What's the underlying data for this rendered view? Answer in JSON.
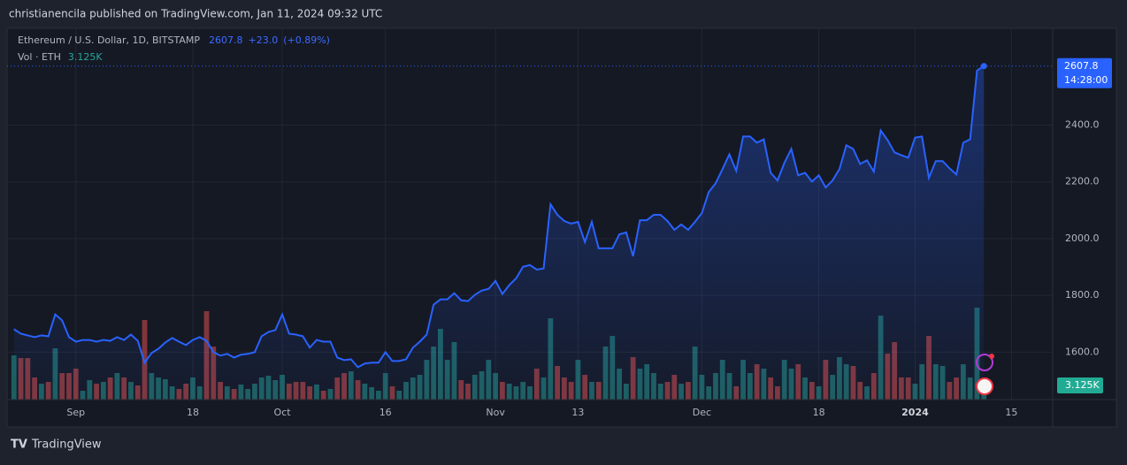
{
  "header": {
    "text": "christianencila published on TradingView.com, Jan 11, 2024 09:32 UTC"
  },
  "footer": {
    "brand": "TradingView"
  },
  "chart_data": {
    "type": "line",
    "x": [
      "2023-08-23",
      "2023-08-24",
      "2023-08-25",
      "2023-08-26",
      "2023-08-27",
      "2023-08-28",
      "2023-08-29",
      "2023-08-30",
      "2023-08-31",
      "2023-09-01",
      "2023-09-02",
      "2023-09-03",
      "2023-09-04",
      "2023-09-05",
      "2023-09-06",
      "2023-09-07",
      "2023-09-08",
      "2023-09-09",
      "2023-09-10",
      "2023-09-11",
      "2023-09-12",
      "2023-09-13",
      "2023-09-14",
      "2023-09-15",
      "2023-09-16",
      "2023-09-17",
      "2023-09-18",
      "2023-09-19",
      "2023-09-20",
      "2023-09-21",
      "2023-09-22",
      "2023-09-23",
      "2023-09-24",
      "2023-09-25",
      "2023-09-26",
      "2023-09-27",
      "2023-09-28",
      "2023-09-29",
      "2023-09-30",
      "2023-10-01",
      "2023-10-02",
      "2023-10-03",
      "2023-10-04",
      "2023-10-05",
      "2023-10-06",
      "2023-10-07",
      "2023-10-08",
      "2023-10-09",
      "2023-10-10",
      "2023-10-11",
      "2023-10-12",
      "2023-10-13",
      "2023-10-14",
      "2023-10-15",
      "2023-10-16",
      "2023-10-17",
      "2023-10-18",
      "2023-10-19",
      "2023-10-20",
      "2023-10-21",
      "2023-10-22",
      "2023-10-23",
      "2023-10-24",
      "2023-10-25",
      "2023-10-26",
      "2023-10-27",
      "2023-10-28",
      "2023-10-29",
      "2023-10-30",
      "2023-10-31",
      "2023-11-01",
      "2023-11-02",
      "2023-11-03",
      "2023-11-04",
      "2023-11-05",
      "2023-11-06",
      "2023-11-07",
      "2023-11-08",
      "2023-11-09",
      "2023-11-10",
      "2023-11-11",
      "2023-11-12",
      "2023-11-13",
      "2023-11-14",
      "2023-11-15",
      "2023-11-16",
      "2023-11-17",
      "2023-11-18",
      "2023-11-19",
      "2023-11-20",
      "2023-11-21",
      "2023-11-22",
      "2023-11-23",
      "2023-11-24",
      "2023-11-25",
      "2023-11-26",
      "2023-11-27",
      "2023-11-28",
      "2023-11-29",
      "2023-11-30",
      "2023-12-01",
      "2023-12-02",
      "2023-12-03",
      "2023-12-04",
      "2023-12-05",
      "2023-12-06",
      "2023-12-07",
      "2023-12-08",
      "2023-12-09",
      "2023-12-10",
      "2023-12-11",
      "2023-12-12",
      "2023-12-13",
      "2023-12-14",
      "2023-12-15",
      "2023-12-16",
      "2023-12-17",
      "2023-12-18",
      "2023-12-19",
      "2023-12-20",
      "2023-12-21",
      "2023-12-22",
      "2023-12-23",
      "2023-12-24",
      "2023-12-25",
      "2023-12-26",
      "2023-12-27",
      "2023-12-28",
      "2023-12-29",
      "2023-12-30",
      "2023-12-31",
      "2024-01-01",
      "2024-01-02",
      "2024-01-03",
      "2024-01-04",
      "2024-01-05",
      "2024-01-06",
      "2024-01-07",
      "2024-01-08",
      "2024-01-09",
      "2024-01-10",
      "2024-01-11"
    ],
    "series": [
      {
        "name": "Ethereum / U.S. Dollar, 1D, BITSTAMP",
        "color": "#2962ff",
        "values": [
          1681,
          1665,
          1659,
          1653,
          1659,
          1656,
          1733,
          1712,
          1653,
          1637,
          1643,
          1643,
          1637,
          1643,
          1640,
          1653,
          1643,
          1662,
          1640,
          1563,
          1597,
          1612,
          1634,
          1650,
          1637,
          1625,
          1643,
          1653,
          1640,
          1600,
          1588,
          1594,
          1581,
          1591,
          1594,
          1600,
          1656,
          1671,
          1678,
          1733,
          1665,
          1662,
          1656,
          1616,
          1643,
          1637,
          1637,
          1581,
          1572,
          1575,
          1547,
          1560,
          1563,
          1563,
          1600,
          1569,
          1569,
          1575,
          1616,
          1637,
          1662,
          1767,
          1786,
          1786,
          1808,
          1783,
          1780,
          1802,
          1817,
          1823,
          1851,
          1805,
          1836,
          1860,
          1901,
          1907,
          1891,
          1895,
          2121,
          2084,
          2062,
          2053,
          2059,
          1988,
          2059,
          1966,
          1966,
          1966,
          2015,
          2022,
          1938,
          2065,
          2065,
          2084,
          2084,
          2062,
          2031,
          2050,
          2031,
          2059,
          2090,
          2164,
          2195,
          2245,
          2297,
          2239,
          2360,
          2360,
          2338,
          2350,
          2232,
          2205,
          2267,
          2316,
          2223,
          2232,
          2201,
          2223,
          2180,
          2205,
          2245,
          2329,
          2316,
          2263,
          2276,
          2236,
          2381,
          2347,
          2304,
          2294,
          2285,
          2356,
          2360,
          2214,
          2273,
          2273,
          2248,
          2226,
          2338,
          2350,
          2592,
          2607.8
        ]
      }
    ],
    "legend_change": {
      "value": 23.0,
      "label": "+23.0"
    },
    "legend_change_pct": {
      "value": 0.89,
      "label": "(+0.89%)"
    },
    "countdown": "14:28:00",
    "volume": {
      "name": "Vol · ETH",
      "up_color": "#26a69a",
      "down_color": "#ef5350",
      "last_label": "3.125K",
      "values": [
        20000,
        18800,
        18800,
        10000,
        7200,
        8000,
        23200,
        12000,
        12000,
        14000,
        4000,
        8800,
        7200,
        8000,
        10000,
        12000,
        10000,
        8000,
        6400,
        36000,
        12000,
        10000,
        9200,
        6000,
        4800,
        7200,
        10000,
        6000,
        40000,
        24000,
        8000,
        6000,
        4800,
        6800,
        4800,
        7200,
        10000,
        10800,
        8800,
        11200,
        7200,
        8000,
        8000,
        6000,
        6800,
        4000,
        4800,
        10000,
        12000,
        12800,
        8800,
        7200,
        5600,
        4000,
        12000,
        6000,
        4000,
        8000,
        10000,
        11200,
        18000,
        24000,
        32000,
        18000,
        26000,
        8800,
        7200,
        11200,
        12800,
        18000,
        12000,
        8000,
        7200,
        6000,
        8000,
        6000,
        14000,
        10000,
        36800,
        15200,
        10000,
        8000,
        18000,
        11200,
        8000,
        8000,
        24000,
        28800,
        14000,
        7200,
        19200,
        14000,
        16000,
        12000,
        7200,
        8000,
        11200,
        7200,
        8000,
        24000,
        11200,
        6000,
        12000,
        18000,
        12000,
        6000,
        18000,
        12000,
        16000,
        14000,
        10000,
        6000,
        18000,
        14000,
        16000,
        10000,
        8000,
        6000,
        18000,
        11200,
        19200,
        16000,
        15200,
        8000,
        6000,
        12000,
        38000,
        20800,
        26000,
        10000,
        10000,
        7200,
        16000,
        28800,
        16000,
        15200,
        8000,
        10000,
        16000,
        10000,
        41600,
        3125
      ]
    },
    "xlim": [
      "2023-08-22",
      "2024-01-21"
    ],
    "ylim": [
      1433,
      2741
    ],
    "yticks": [
      {
        "value": 1600,
        "label": "1600.0"
      },
      {
        "value": 1800,
        "label": "1800.0"
      },
      {
        "value": 2000,
        "label": "2000.0"
      },
      {
        "value": 2200,
        "label": "2200.0"
      },
      {
        "value": 2400,
        "label": "2400.0"
      }
    ],
    "xticks": [
      {
        "value": "2023-09-01",
        "label": "Sep"
      },
      {
        "value": "2023-09-18",
        "label": "18"
      },
      {
        "value": "2023-10-01",
        "label": "Oct"
      },
      {
        "value": "2023-10-16",
        "label": "16"
      },
      {
        "value": "2023-11-01",
        "label": "Nov"
      },
      {
        "value": "2023-11-13",
        "label": "13"
      },
      {
        "value": "2023-12-01",
        "label": "Dec"
      },
      {
        "value": "2023-12-18",
        "label": "18"
      },
      {
        "value": "2024-01-01",
        "label": "2024"
      },
      {
        "value": "2024-01-15",
        "label": "15"
      }
    ],
    "grid": true
  }
}
